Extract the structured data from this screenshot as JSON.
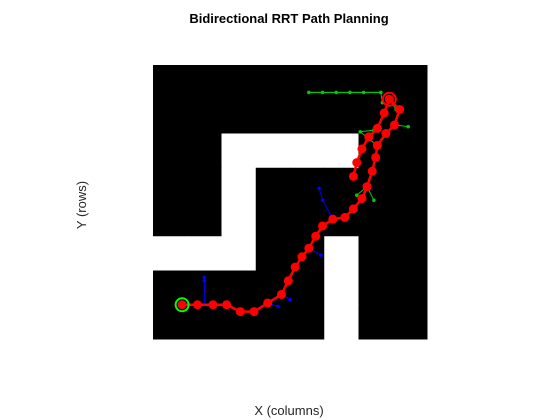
{
  "chart_data": {
    "type": "scatter",
    "title": "Bidirectional RRT Path Planning",
    "xlabel": "X (columns)",
    "ylabel": "Y (rows)",
    "xlim": [
      0.5,
      8.5
    ],
    "ylim": [
      0.5,
      8.5
    ],
    "y_direction": "reverse",
    "axis_visible": false,
    "grid": false,
    "colors": {
      "obstacle": "#000000",
      "free": "#ffffff",
      "start_tree": "#0000ff",
      "goal_tree": "#00cc00",
      "path": "#ff0000",
      "start_marker": "#00ff00",
      "goal_marker": "#ff0000"
    },
    "occupancy_grid": [
      [
        0,
        0,
        0,
        0,
        0,
        0,
        0,
        0
      ],
      [
        0,
        0,
        0,
        0,
        0,
        0,
        0,
        0
      ],
      [
        0,
        0,
        1,
        1,
        1,
        1,
        0,
        0
      ],
      [
        0,
        0,
        1,
        0,
        0,
        0,
        0,
        0
      ],
      [
        0,
        0,
        1,
        0,
        0,
        0,
        0,
        0
      ],
      [
        1,
        1,
        1,
        0,
        0,
        1,
        0,
        0
      ],
      [
        0,
        0,
        0,
        0,
        0,
        1,
        0,
        0
      ],
      [
        0,
        0,
        0,
        0,
        0,
        1,
        0,
        0
      ]
    ],
    "start": [
      1.35,
      7.5
    ],
    "goal": [
      7.4,
      1.5
    ],
    "path": [
      [
        1.35,
        7.5
      ],
      [
        1.8,
        7.5
      ],
      [
        2.25,
        7.5
      ],
      [
        2.65,
        7.5
      ],
      [
        3.05,
        7.7
      ],
      [
        3.45,
        7.7
      ],
      [
        3.85,
        7.45
      ],
      [
        4.25,
        7.2
      ],
      [
        4.45,
        6.8
      ],
      [
        4.65,
        6.4
      ],
      [
        4.85,
        6.1
      ],
      [
        5.05,
        5.85
      ],
      [
        5.25,
        5.5
      ],
      [
        5.45,
        5.2
      ],
      [
        5.75,
        5.0
      ],
      [
        6.1,
        4.95
      ],
      [
        6.35,
        4.7
      ],
      [
        6.6,
        4.4
      ],
      [
        6.75,
        4.05
      ],
      [
        6.9,
        3.6
      ],
      [
        7.0,
        3.2
      ],
      [
        7.05,
        2.85
      ],
      [
        7.3,
        2.5
      ],
      [
        7.55,
        2.25
      ],
      [
        7.7,
        1.8
      ],
      [
        7.4,
        1.5
      ],
      [
        7.25,
        1.9
      ],
      [
        7.05,
        2.35
      ],
      [
        6.8,
        2.6
      ],
      [
        6.6,
        2.95
      ],
      [
        6.45,
        3.35
      ],
      [
        6.35,
        3.75
      ]
    ],
    "start_tree_edges": [
      [
        [
          1.35,
          7.5
        ],
        [
          1.8,
          7.5
        ]
      ],
      [
        [
          2.0,
          7.5
        ],
        [
          2.0,
          6.8
        ]
      ],
      [
        [
          2.0,
          7.1
        ],
        [
          2.0,
          6.7
        ]
      ],
      [
        [
          3.85,
          7.45
        ],
        [
          4.15,
          7.55
        ]
      ],
      [
        [
          4.25,
          7.2
        ],
        [
          4.5,
          7.35
        ]
      ],
      [
        [
          5.05,
          5.85
        ],
        [
          5.4,
          6.05
        ]
      ],
      [
        [
          5.75,
          5.0
        ],
        [
          5.45,
          4.45
        ]
      ],
      [
        [
          5.45,
          4.45
        ],
        [
          5.35,
          4.1
        ]
      ]
    ],
    "goal_tree_edges": [
      [
        [
          5.05,
          1.3
        ],
        [
          7.15,
          1.3
        ]
      ],
      [
        [
          7.15,
          1.3
        ],
        [
          7.2,
          1.6
        ]
      ],
      [
        [
          7.4,
          1.5
        ],
        [
          7.6,
          1.8
        ]
      ],
      [
        [
          7.55,
          2.25
        ],
        [
          7.95,
          2.3
        ]
      ],
      [
        [
          7.05,
          2.85
        ],
        [
          6.55,
          2.45
        ]
      ],
      [
        [
          6.55,
          2.45
        ],
        [
          6.95,
          2.4
        ]
      ],
      [
        [
          6.75,
          4.05
        ],
        [
          6.95,
          4.45
        ]
      ],
      [
        [
          6.75,
          4.05
        ],
        [
          6.45,
          4.3
        ]
      ]
    ],
    "goal_tree_nodes": [
      [
        5.05,
        1.3
      ],
      [
        5.45,
        1.3
      ],
      [
        5.85,
        1.3
      ],
      [
        6.25,
        1.3
      ],
      [
        6.65,
        1.3
      ],
      [
        7.15,
        1.3
      ],
      [
        7.2,
        1.6
      ],
      [
        7.6,
        1.8
      ],
      [
        7.95,
        2.3
      ],
      [
        6.55,
        2.45
      ],
      [
        6.95,
        2.4
      ],
      [
        6.95,
        4.45
      ],
      [
        6.45,
        4.3
      ]
    ]
  }
}
